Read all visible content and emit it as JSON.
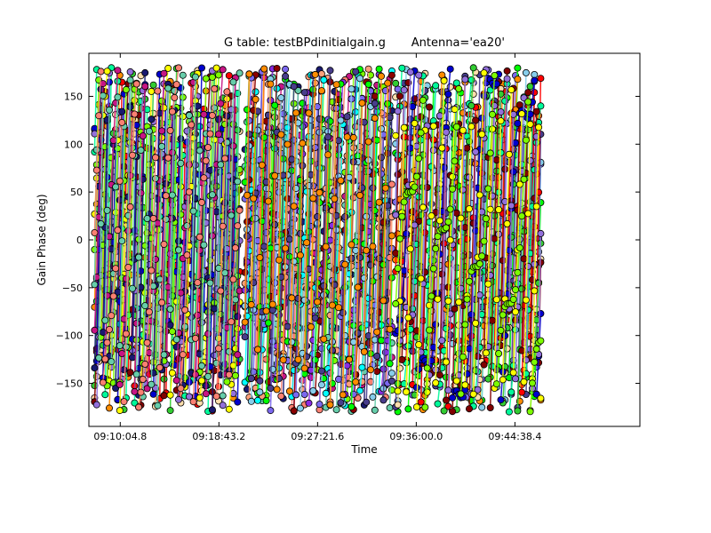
{
  "chart_data": {
    "type": "scatter",
    "title": "G table: testBPdinitialgain.g       Antenna='ea20'",
    "xlabel": "Time",
    "ylabel": "Gain Phase (deg)",
    "ylim": [
      -195,
      195
    ],
    "xlim_seconds_of_day": [
      32840,
      35735
    ],
    "x_ticks": [
      {
        "label": "09:10:04.8",
        "value": 33004.8
      },
      {
        "label": "09:18:43.2",
        "value": 33523.2
      },
      {
        "label": "09:27:21.6",
        "value": 34041.6
      },
      {
        "label": "09:36:00.0",
        "value": 34560.0
      },
      {
        "label": "09:44:38.4",
        "value": 35078.4
      }
    ],
    "y_ticks": [
      -150,
      -100,
      -50,
      0,
      50,
      100,
      150
    ],
    "grid": false,
    "legend": "none",
    "scan_blocks": [
      {
        "start": "09:07:50",
        "end": "09:20:32"
      },
      {
        "start": "09:21:00",
        "end": "09:33:52"
      },
      {
        "start": "09:34:12",
        "end": "09:46:54"
      }
    ],
    "series_colors": [
      "#ff8c00",
      "#00ffff",
      "#ffff00",
      "#ff0000",
      "#8a2be2",
      "#7cfc00",
      "#ffdead",
      "#8b0000",
      "#191970",
      "#00fa9a",
      "#7b68ee",
      "#c71585",
      "#32cd32",
      "#00ff00",
      "#66cdaa",
      "#800000",
      "#87ceeb",
      "#fa8072",
      "#0000cd",
      "#483d8b",
      "#ffa07a",
      "#9370db"
    ]
  }
}
